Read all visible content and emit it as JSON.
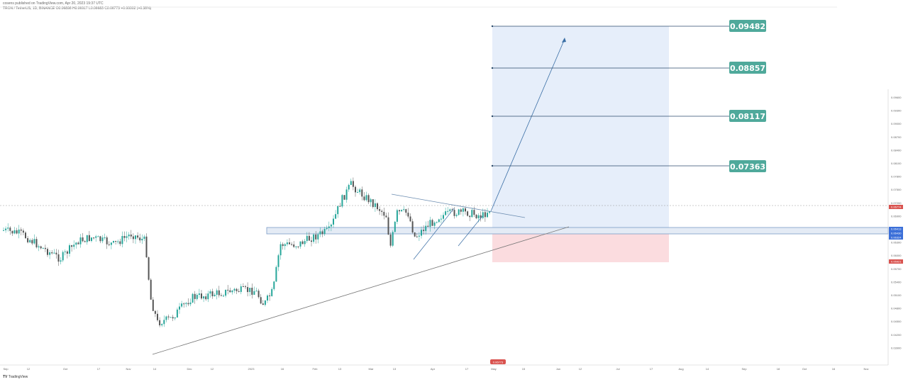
{
  "header": {
    "published": "cosens published on TradingView.com, Apr 20, 2023 19:37 UTC",
    "symbol_line": "TRON / TetherUS, 1D, BINANCE O0.06898 H0.06917 L0.06683 C0.06773 +0.00002 (+0.38%)"
  },
  "footer": {
    "logo_text": "TradingView"
  },
  "colors": {
    "up": "#26a69a",
    "down": "#555555",
    "profit_zone": "#e3ecfa",
    "loss_zone": "#fbdcdf",
    "target_box": "#4fa99b",
    "target_line": "#2b4a6b",
    "trend_line": "#777777",
    "projection": "#3a6ea5"
  },
  "chart_data": {
    "type": "candlestick",
    "x_ticks": [
      "Sep",
      "12",
      "Oct",
      "17",
      "Nov",
      "14",
      "Dec",
      "12",
      "2023",
      "16",
      "Feb",
      "13",
      "Mar",
      "13",
      "Apr",
      "17",
      "May",
      "15",
      "Jun",
      "12",
      "Jul",
      "17",
      "Aug",
      "14",
      "Sep",
      "18",
      "Oct",
      "16",
      "Nov"
    ],
    "y_ticks": [
      "0.09600",
      "0.09300",
      "0.09000",
      "0.08700",
      "0.08400",
      "0.08100",
      "0.07800",
      "0.07500",
      "0.07200",
      "0.06900",
      "0.06600",
      "0.06300",
      "0.06000",
      "0.05700",
      "0.05400",
      "0.05100",
      "0.04800",
      "0.04500",
      "0.04200",
      "0.03900"
    ],
    "price_labels": [
      {
        "value": "0.06774",
        "color": "#d9534f"
      },
      {
        "value": "0.06413",
        "color": "#3b6fd8"
      },
      {
        "value": "0.06430",
        "color": "#3b6fd8"
      },
      {
        "value": "0.06324",
        "color": "#3b6fd8"
      },
      {
        "value": "0.05921",
        "color": "#d9534f"
      }
    ],
    "current_price_marker": "0.06773",
    "targets": [
      "0.09482",
      "0.08857",
      "0.08117",
      "0.07363"
    ]
  }
}
